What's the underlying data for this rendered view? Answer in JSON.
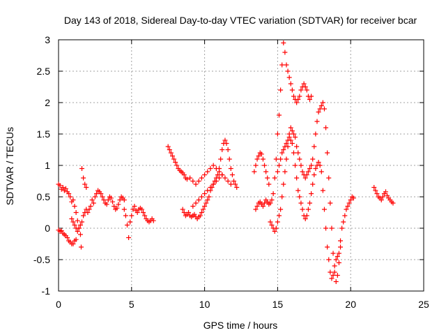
{
  "chart_data": {
    "type": "scatter",
    "title": "Day 143 of 2018, Sidereal Day-to-day VTEC variation (SDTVAR) for receiver bcar",
    "xlabel": "GPS time / hours",
    "ylabel": "SDTVAR / TECUs",
    "xlim": [
      0,
      25
    ],
    "ylim": [
      -1,
      3
    ],
    "xticks": [
      0,
      5,
      10,
      15,
      20,
      25
    ],
    "yticks": [
      -1,
      -0.5,
      0,
      0.5,
      1,
      1.5,
      2,
      2.5,
      3
    ],
    "grid": true,
    "marker": "+",
    "series_color": "#ff0000",
    "series": [
      {
        "name": "SDTVAR",
        "x": [
          0.0,
          0.1,
          0.2,
          0.3,
          0.4,
          0.5,
          0.6,
          0.7,
          0.8,
          0.9,
          1.0,
          1.1,
          1.2,
          1.3,
          1.4,
          1.5,
          1.55,
          1.6,
          1.7,
          1.8,
          1.9,
          0.0,
          0.1,
          0.2,
          0.3,
          0.4,
          0.5,
          0.6,
          0.7,
          0.8,
          0.9,
          1.0,
          1.1,
          1.2,
          0.9,
          1.0,
          1.1,
          1.2,
          1.3,
          1.4,
          1.5,
          1.6,
          1.7,
          1.8,
          1.9,
          2.0,
          2.1,
          2.2,
          2.3,
          2.4,
          2.5,
          2.6,
          2.7,
          2.8,
          2.9,
          3.0,
          3.1,
          3.2,
          3.3,
          3.4,
          3.5,
          3.6,
          3.7,
          3.8,
          3.9,
          4.0,
          4.1,
          4.2,
          4.3,
          4.4,
          4.5,
          4.5,
          4.6,
          4.7,
          4.8,
          4.9,
          5.0,
          5.1,
          5.2,
          5.3,
          5.4,
          5.5,
          5.6,
          5.7,
          5.8,
          5.9,
          6.0,
          6.1,
          6.2,
          6.3,
          6.4,
          6.5,
          7.5,
          7.6,
          7.7,
          7.8,
          7.9,
          8.0,
          8.1,
          8.2,
          8.3,
          8.4,
          8.5,
          8.6,
          8.7,
          8.8,
          8.5,
          8.6,
          8.7,
          8.8,
          8.9,
          9.0,
          9.1,
          9.2,
          9.3,
          9.4,
          9.5,
          9.6,
          9.7,
          9.8,
          9.9,
          10.0,
          10.1,
          10.2,
          10.3,
          10.4,
          10.5,
          10.6,
          10.7,
          10.8,
          10.9,
          11.0,
          11.1,
          11.2,
          11.3,
          11.4,
          11.5,
          11.6,
          11.7,
          11.8,
          11.9,
          12.0,
          12.1,
          12.2,
          9.0,
          9.2,
          9.4,
          9.6,
          9.8,
          10.0,
          10.2,
          10.4,
          10.6,
          10.8,
          11.0,
          11.2,
          11.4,
          11.6,
          11.8,
          9.2,
          9.4,
          9.6,
          9.8,
          10.0,
          10.2,
          10.4,
          10.6,
          10.8,
          11.0,
          11.2,
          13.4,
          13.5,
          13.6,
          13.7,
          13.8,
          13.9,
          14.0,
          14.1,
          14.2,
          14.3,
          14.4,
          13.5,
          13.6,
          13.7,
          13.8,
          13.9,
          14.0,
          14.1,
          14.2,
          14.3,
          14.4,
          14.5,
          14.6,
          14.7,
          14.8,
          14.9,
          15.0,
          15.1,
          15.2,
          15.3,
          15.4,
          15.5,
          15.6,
          15.7,
          15.8,
          15.9,
          16.0,
          16.1,
          16.2,
          16.3,
          16.4,
          16.5,
          16.6,
          16.7,
          16.8,
          16.9,
          17.0,
          17.1,
          17.2,
          17.3,
          14.5,
          14.6,
          14.7,
          14.8,
          14.9,
          15.0,
          15.1,
          15.2,
          15.3,
          15.4,
          15.5,
          15.6,
          15.7,
          15.8,
          15.9,
          16.0,
          16.1,
          16.2,
          16.3,
          16.4,
          16.5,
          16.6,
          16.7,
          16.8,
          16.9,
          17.0,
          17.1,
          17.2,
          17.3,
          17.4,
          17.5,
          17.6,
          17.7,
          17.8,
          17.9,
          18.0,
          18.1,
          18.2,
          18.3,
          18.4,
          18.5,
          18.6,
          18.7,
          18.8,
          18.9,
          19.0,
          19.1,
          19.2,
          19.3,
          19.4,
          19.5,
          19.6,
          19.7,
          19.8,
          19.9,
          20.0,
          20.1,
          20.2,
          15.0,
          15.1,
          15.2,
          15.3,
          15.4,
          15.5,
          15.6,
          15.7,
          15.8,
          15.9,
          16.0,
          16.1,
          16.2,
          16.3,
          16.4,
          16.5,
          16.6,
          16.7,
          16.8,
          16.9,
          17.0,
          17.1,
          17.2,
          17.3,
          17.4,
          17.5,
          17.6,
          17.7,
          17.8,
          17.9,
          18.0,
          18.1,
          18.2,
          18.3,
          18.4,
          18.5,
          18.6,
          18.7,
          18.8,
          18.9,
          19.0,
          19.1,
          19.2,
          19.3,
          21.6,
          21.7,
          21.8,
          21.9,
          22.0,
          22.1,
          22.2,
          22.3,
          22.4,
          22.5,
          22.6,
          22.7,
          22.8,
          22.9
        ],
        "y": [
          0.7,
          0.68,
          0.62,
          0.65,
          0.6,
          0.63,
          0.58,
          0.55,
          0.5,
          0.42,
          0.45,
          0.35,
          0.25,
          0.12,
          0.0,
          -0.1,
          -0.3,
          0.95,
          0.8,
          0.7,
          0.65,
          -0.03,
          -0.05,
          -0.04,
          -0.08,
          -0.1,
          -0.12,
          -0.15,
          -0.2,
          -0.22,
          -0.25,
          -0.25,
          -0.2,
          -0.18,
          0.15,
          0.1,
          0.05,
          0.0,
          -0.05,
          0.0,
          0.05,
          0.1,
          0.2,
          0.25,
          0.3,
          0.25,
          0.3,
          0.35,
          0.45,
          0.4,
          0.5,
          0.55,
          0.6,
          0.58,
          0.55,
          0.5,
          0.45,
          0.4,
          0.38,
          0.45,
          0.5,
          0.48,
          0.42,
          0.35,
          0.3,
          0.32,
          0.38,
          0.45,
          0.5,
          0.48,
          0.45,
          0.3,
          0.2,
          0.05,
          -0.15,
          0.1,
          0.2,
          0.3,
          0.35,
          0.28,
          0.25,
          0.3,
          0.32,
          0.3,
          0.25,
          0.2,
          0.15,
          0.12,
          0.1,
          0.12,
          0.15,
          0.12,
          1.3,
          1.25,
          1.2,
          1.15,
          1.1,
          1.05,
          1.0,
          0.95,
          0.92,
          0.9,
          0.88,
          0.85,
          0.8,
          0.78,
          0.3,
          0.25,
          0.2,
          0.22,
          0.25,
          0.2,
          0.18,
          0.2,
          0.22,
          0.18,
          0.15,
          0.18,
          0.2,
          0.25,
          0.3,
          0.35,
          0.4,
          0.45,
          0.5,
          0.6,
          0.65,
          0.7,
          0.75,
          0.8,
          0.85,
          0.95,
          1.1,
          1.25,
          1.35,
          1.4,
          1.35,
          1.25,
          1.1,
          0.95,
          0.85,
          0.75,
          0.7,
          0.65,
          0.8,
          0.75,
          0.7,
          0.75,
          0.8,
          0.85,
          0.9,
          0.95,
          1.0,
          0.95,
          0.9,
          0.85,
          0.8,
          0.75,
          0.7,
          0.35,
          0.4,
          0.45,
          0.5,
          0.55,
          0.6,
          0.65,
          0.7,
          0.75,
          0.8,
          0.85,
          0.9,
          1.0,
          1.1,
          1.15,
          1.2,
          1.18,
          1.1,
          1.0,
          0.9,
          0.8,
          0.7,
          0.3,
          0.35,
          0.4,
          0.42,
          0.38,
          0.35,
          0.4,
          0.45,
          0.42,
          0.38,
          0.4,
          0.45,
          0.55,
          0.8,
          1.1,
          1.5,
          1.8,
          2.2,
          2.6,
          2.95,
          2.8,
          2.6,
          2.5,
          2.4,
          2.3,
          2.2,
          2.1,
          2.05,
          2.0,
          2.05,
          2.1,
          2.2,
          2.25,
          2.3,
          2.25,
          2.2,
          2.1,
          2.05,
          2.1,
          0.1,
          0.05,
          0.0,
          -0.05,
          0.0,
          0.1,
          0.2,
          0.3,
          0.5,
          0.7,
          0.9,
          1.1,
          1.3,
          1.5,
          1.6,
          1.55,
          1.5,
          1.45,
          1.3,
          1.2,
          1.1,
          1.0,
          0.9,
          0.85,
          0.8,
          0.85,
          0.9,
          0.95,
          1.0,
          1.1,
          1.3,
          1.5,
          1.7,
          1.85,
          1.9,
          1.95,
          2.0,
          1.9,
          1.6,
          1.2,
          0.8,
          0.4,
          0.0,
          -0.4,
          -0.7,
          -0.85,
          -0.75,
          -0.55,
          -0.2,
          0.0,
          0.1,
          0.2,
          0.3,
          0.35,
          0.4,
          0.45,
          0.5,
          0.48,
          0.9,
          1.0,
          1.1,
          1.2,
          1.25,
          1.3,
          1.35,
          1.4,
          1.45,
          1.4,
          1.35,
          1.2,
          1.0,
          0.8,
          0.6,
          0.5,
          0.4,
          0.3,
          0.2,
          0.15,
          0.2,
          0.3,
          0.4,
          0.55,
          0.7,
          0.85,
          0.95,
          1.0,
          1.05,
          1.0,
          0.9,
          0.6,
          0.3,
          0.0,
          -0.3,
          -0.5,
          -0.7,
          -0.8,
          -0.75,
          -0.6,
          -0.5,
          -0.45,
          -0.4,
          -0.3,
          0.65,
          0.6,
          0.55,
          0.5,
          0.48,
          0.45,
          0.5,
          0.55,
          0.58,
          0.52,
          0.48,
          0.45,
          0.42,
          0.4
        ]
      }
    ]
  }
}
